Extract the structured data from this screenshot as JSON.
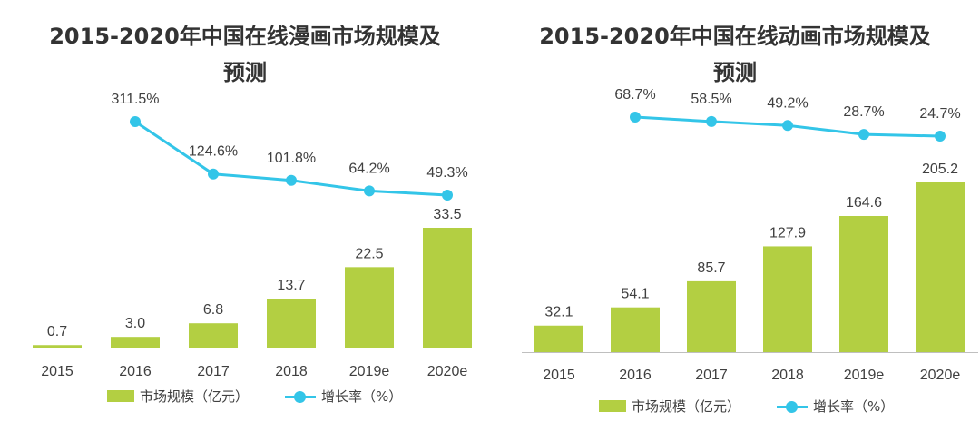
{
  "colors": {
    "bar": "#B3CF42",
    "line": "#33C5E8",
    "axis": "#BFBFBF",
    "text": "#404040"
  },
  "legend": {
    "bar_label": "市场规模（亿元）",
    "line_label": "增长率（%）"
  },
  "chart_data": [
    {
      "type": "bar",
      "title": "2015-2020年中国在线漫画市场规模及预测",
      "title_lines": [
        "2015-2020年中国在线漫画市场规模及",
        "预测"
      ],
      "categories": [
        "2015",
        "2016",
        "2017",
        "2018",
        "2019e",
        "2020e"
      ],
      "series": [
        {
          "name": "市场规模（亿元）",
          "type": "bar",
          "values": [
            0.7,
            3.0,
            6.8,
            13.7,
            22.5,
            33.5
          ],
          "labels": [
            "0.7",
            "3.0",
            "6.8",
            "13.7",
            "22.5",
            "33.5"
          ]
        },
        {
          "name": "增长率（%）",
          "type": "line",
          "values": [
            null,
            311.5,
            124.6,
            101.8,
            64.2,
            49.3
          ],
          "labels": [
            "",
            "311.5%",
            "124.6%",
            "101.8%",
            "64.2%",
            "49.3%"
          ]
        }
      ],
      "xlabel": "",
      "ylabel": ""
    },
    {
      "type": "bar",
      "title": "2015-2020年中国在线动画市场规模及预测",
      "title_lines": [
        "2015-2020年中国在线动画市场规模及",
        "预测"
      ],
      "categories": [
        "2015",
        "2016",
        "2017",
        "2018",
        "2019e",
        "2020e"
      ],
      "series": [
        {
          "name": "市场规模（亿元）",
          "type": "bar",
          "values": [
            32.1,
            54.1,
            85.7,
            127.9,
            164.6,
            205.2
          ],
          "labels": [
            "32.1",
            "54.1",
            "85.7",
            "127.9",
            "164.6",
            "205.2"
          ]
        },
        {
          "name": "增长率（%）",
          "type": "line",
          "values": [
            null,
            68.7,
            58.5,
            49.2,
            28.7,
            24.7
          ],
          "labels": [
            "",
            "68.7%",
            "58.5%",
            "49.2%",
            "28.7%",
            "24.7%"
          ]
        }
      ],
      "xlabel": "",
      "ylabel": ""
    }
  ]
}
